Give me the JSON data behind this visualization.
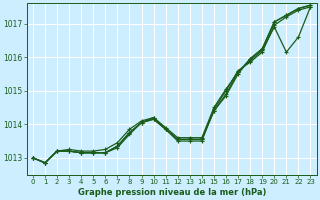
{
  "xlabel": "Graphe pression niveau de la mer (hPa)",
  "background_color": "#cceeff",
  "grid_color": "#ffffff",
  "line_color": "#1a5c1a",
  "ylim": [
    1012.5,
    1017.6
  ],
  "xlim": [
    -0.5,
    23.5
  ],
  "yticks": [
    1013,
    1014,
    1015,
    1016,
    1017
  ],
  "xticks": [
    0,
    1,
    2,
    3,
    4,
    5,
    6,
    7,
    8,
    9,
    10,
    11,
    12,
    13,
    14,
    15,
    16,
    17,
    18,
    19,
    20,
    21,
    22,
    23
  ],
  "series": [
    [
      1013.0,
      1012.85,
      1013.2,
      1013.2,
      1013.15,
      1013.15,
      1013.15,
      1013.3,
      1013.7,
      1014.05,
      1014.15,
      1013.85,
      1013.55,
      1013.55,
      1013.55,
      1014.4,
      1014.85,
      1015.5,
      1015.95,
      1016.25,
      1017.05,
      1017.25,
      1017.45,
      1017.55
    ],
    [
      1013.0,
      1012.85,
      1013.2,
      1013.2,
      1013.15,
      1013.15,
      1013.15,
      1013.35,
      1013.75,
      1014.05,
      1014.2,
      1013.85,
      1013.55,
      1013.55,
      1013.55,
      1014.4,
      1014.9,
      1015.55,
      1015.95,
      1016.25,
      1017.05,
      1017.25,
      1017.45,
      1017.55
    ],
    [
      1013.0,
      1012.85,
      1013.2,
      1013.2,
      1013.15,
      1013.15,
      1013.15,
      1013.35,
      1013.75,
      1014.05,
      1014.15,
      1013.85,
      1013.5,
      1013.5,
      1013.5,
      1014.45,
      1015.0,
      1015.6,
      1015.85,
      1016.15,
      1016.95,
      1017.2,
      1017.4,
      1017.5
    ],
    [
      1013.0,
      1012.85,
      1013.2,
      1013.25,
      1013.2,
      1013.2,
      1013.25,
      1013.45,
      1013.85,
      1014.1,
      1014.2,
      1013.9,
      1013.6,
      1013.6,
      1013.6,
      1014.5,
      1015.05,
      1015.55,
      1015.9,
      1016.2,
      1016.9,
      1016.15,
      1016.6,
      1017.5
    ]
  ]
}
